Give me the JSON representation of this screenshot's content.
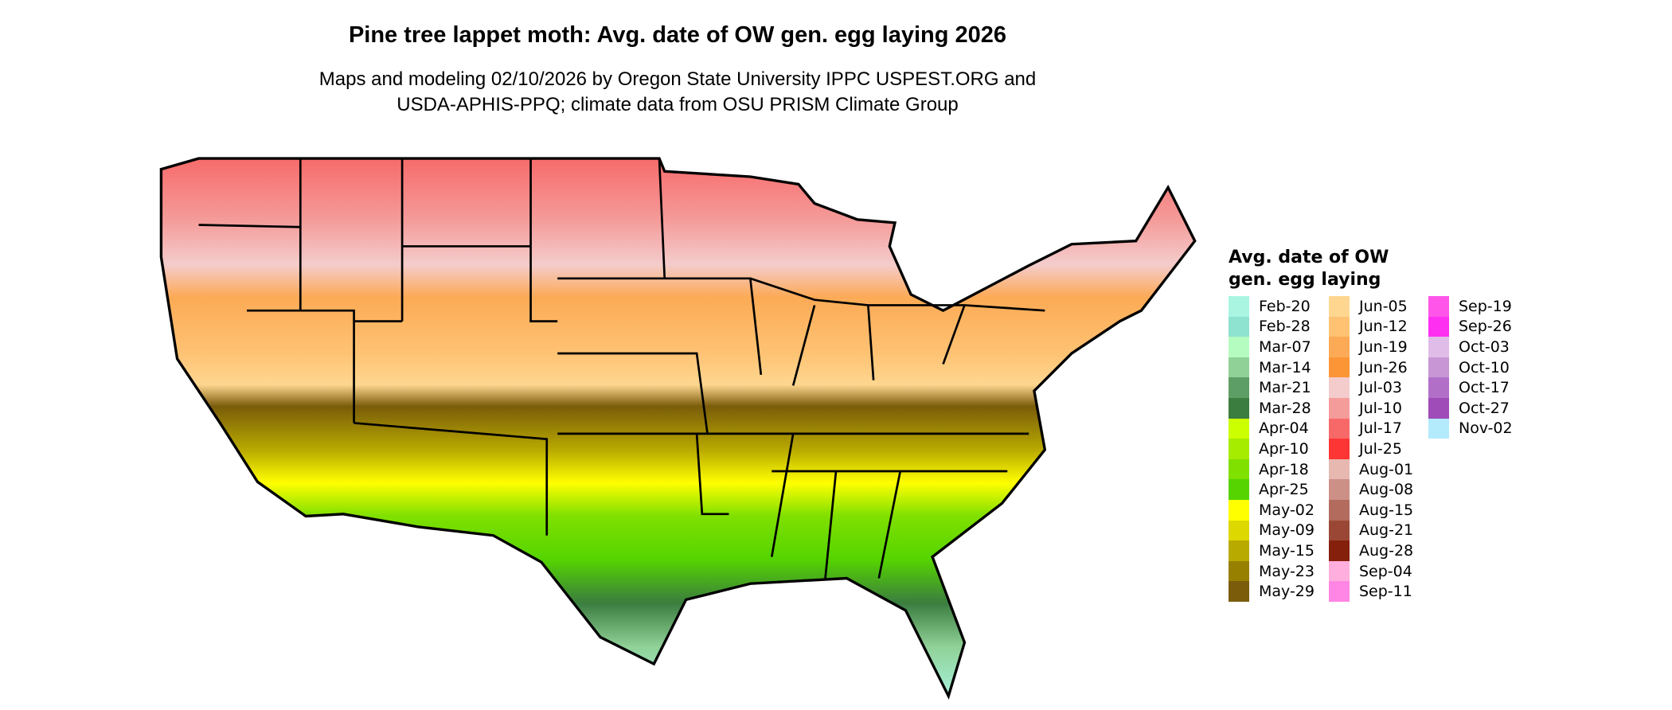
{
  "chart_data": {
    "type": "heatmap",
    "title": "Pine tree lappet moth: Avg. date of OW gen. egg laying 2026",
    "subtitle_lines": [
      "Maps and modeling 02/10/2026 by Oregon State University IPPC USPEST.ORG and",
      "USDA-APHIS-PPQ; climate data from OSU PRISM Climate Group"
    ],
    "legend_title_lines": [
      "Avg. date of OW",
      "gen. egg laying"
    ],
    "legend_placement": "right",
    "legend": [
      [
        {
          "label": "Feb-20",
          "color": "#aaf5e2"
        },
        {
          "label": "Feb-28",
          "color": "#8ee2d0"
        },
        {
          "label": "Mar-07",
          "color": "#b5fcc0"
        },
        {
          "label": "Mar-14",
          "color": "#8fd197"
        },
        {
          "label": "Mar-21",
          "color": "#5d9e66"
        },
        {
          "label": "Mar-28",
          "color": "#3b7d3f"
        },
        {
          "label": "Apr-04",
          "color": "#ccff00"
        },
        {
          "label": "Apr-10",
          "color": "#a6ec00"
        },
        {
          "label": "Apr-18",
          "color": "#80e000"
        },
        {
          "label": "Apr-25",
          "color": "#55d400"
        },
        {
          "label": "May-02",
          "color": "#ffff00"
        },
        {
          "label": "May-09",
          "color": "#dcd800"
        },
        {
          "label": "May-15",
          "color": "#b9aa00"
        },
        {
          "label": "May-23",
          "color": "#978000"
        },
        {
          "label": "May-29",
          "color": "#7a5c0a"
        }
      ],
      [
        {
          "label": "Jun-05",
          "color": "#fed690"
        },
        {
          "label": "Jun-12",
          "color": "#fec272"
        },
        {
          "label": "Jun-19",
          "color": "#fcaa55"
        },
        {
          "label": "Jun-26",
          "color": "#fc9535"
        },
        {
          "label": "Jul-03",
          "color": "#f4cccc"
        },
        {
          "label": "Jul-10",
          "color": "#f49c9a"
        },
        {
          "label": "Jul-17",
          "color": "#f76868"
        },
        {
          "label": "Jul-25",
          "color": "#fe3535"
        },
        {
          "label": "Aug-01",
          "color": "#e6b8b0"
        },
        {
          "label": "Aug-08",
          "color": "#cc9086"
        },
        {
          "label": "Aug-15",
          "color": "#b26b5d"
        },
        {
          "label": "Aug-21",
          "color": "#9a4835"
        },
        {
          "label": "Aug-28",
          "color": "#85200d"
        },
        {
          "label": "Sep-04",
          "color": "#ffaedd"
        },
        {
          "label": "Sep-11",
          "color": "#ff86e4"
        }
      ],
      [
        {
          "label": "Sep-19",
          "color": "#ff55e8"
        },
        {
          "label": "Sep-26",
          "color": "#ff2ff2"
        },
        {
          "label": "Oct-03",
          "color": "#e0bde8"
        },
        {
          "label": "Oct-10",
          "color": "#c896d5"
        },
        {
          "label": "Oct-17",
          "color": "#b26fc8"
        },
        {
          "label": "Oct-27",
          "color": "#9f4bb8"
        },
        {
          "label": "Nov-02",
          "color": "#b3eafc"
        }
      ]
    ]
  }
}
